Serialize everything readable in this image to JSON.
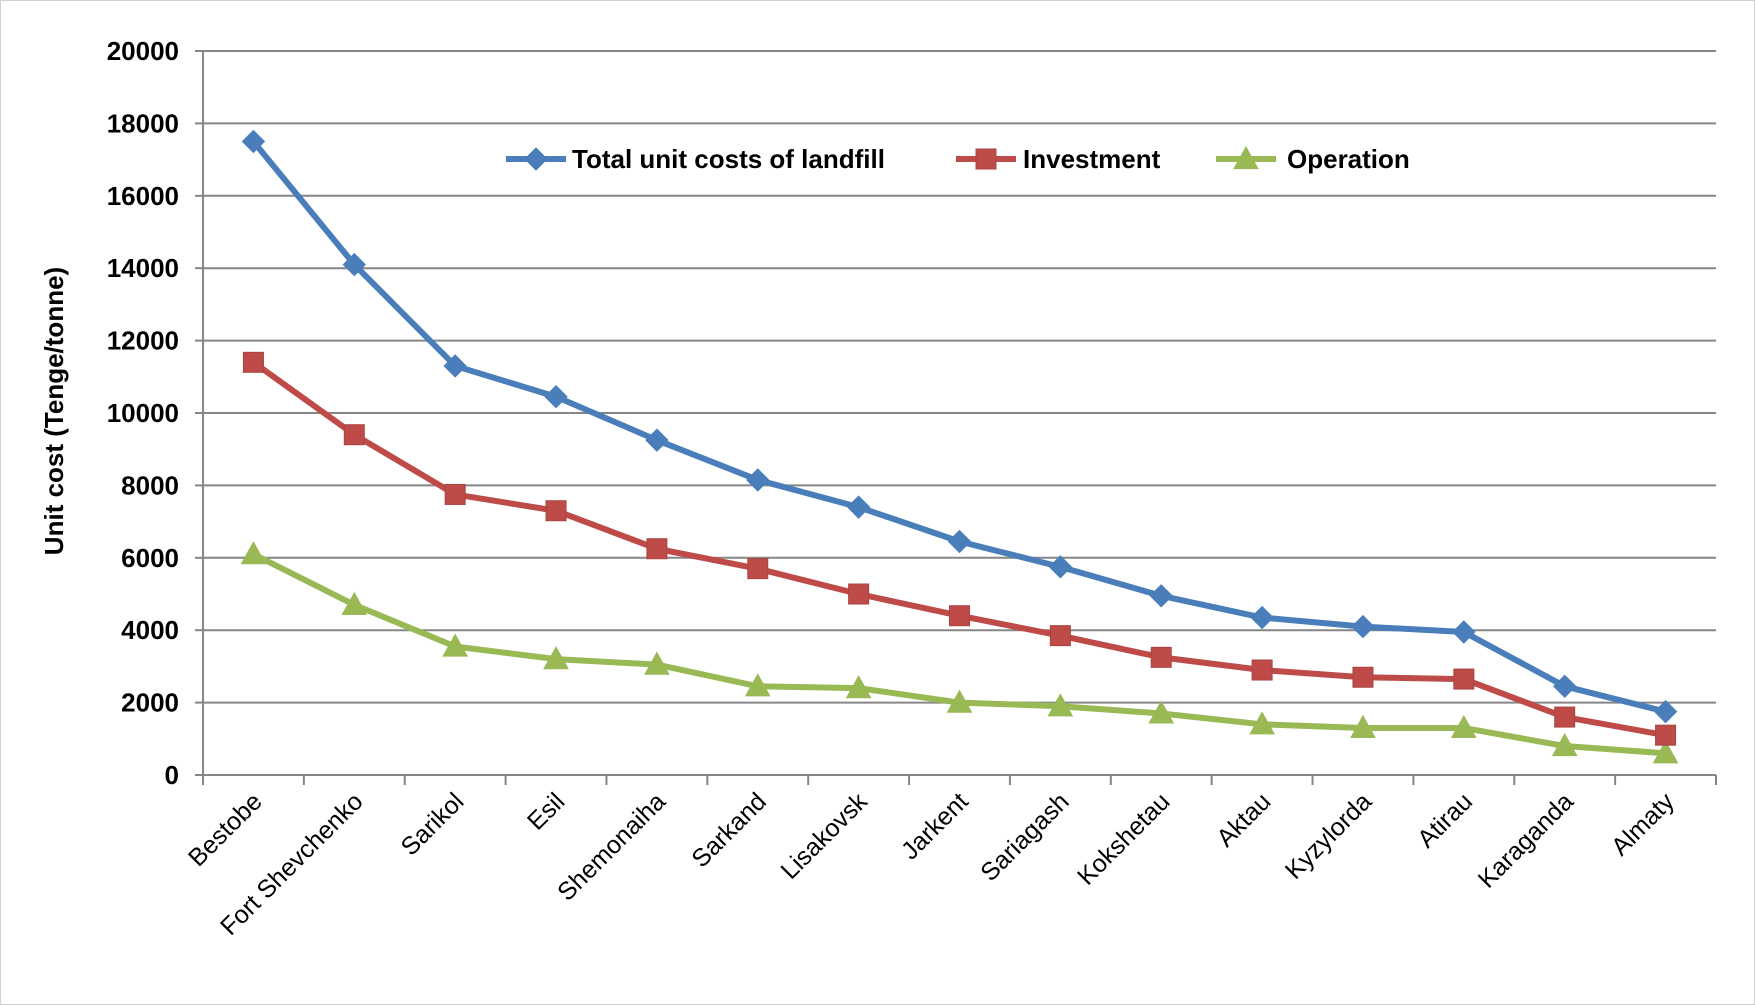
{
  "chart_data": {
    "type": "line",
    "title": "",
    "xlabel": "",
    "ylabel": "Unit cost (Tenge/tonne)",
    "ylim": [
      0,
      20000
    ],
    "yticks": [
      0,
      2000,
      4000,
      6000,
      8000,
      10000,
      12000,
      14000,
      16000,
      18000,
      20000
    ],
    "grid": true,
    "legend_position": "top-center",
    "categories": [
      "Bestobe",
      "Fort Shevchenko",
      "Sarikol",
      "Esil",
      "Shemonaiha",
      "Sarkand",
      "Lisakovsk",
      "Jarkent",
      "Sariagash",
      "Kokshetau",
      "Aktau",
      "Kyzylorda",
      "Atirau",
      "Karaganda",
      "Almaty"
    ],
    "series": [
      {
        "name": "Total unit costs of landfill",
        "color": "#4a7ebb",
        "marker": "diamond",
        "values": [
          17500,
          14100,
          11300,
          10450,
          9250,
          8150,
          7400,
          6450,
          5750,
          4950,
          4350,
          4100,
          3950,
          2450,
          1750
        ]
      },
      {
        "name": "Investment",
        "color": "#be4b48",
        "marker": "square",
        "values": [
          11400,
          9400,
          7750,
          7300,
          6250,
          5700,
          5000,
          4400,
          3850,
          3250,
          2900,
          2700,
          2650,
          1600,
          1100
        ]
      },
      {
        "name": "Operation",
        "color": "#98b954",
        "marker": "triangle",
        "values": [
          6100,
          4700,
          3550,
          3200,
          3050,
          2450,
          2400,
          2000,
          1900,
          1700,
          1400,
          1300,
          1300,
          800,
          600
        ]
      }
    ]
  }
}
